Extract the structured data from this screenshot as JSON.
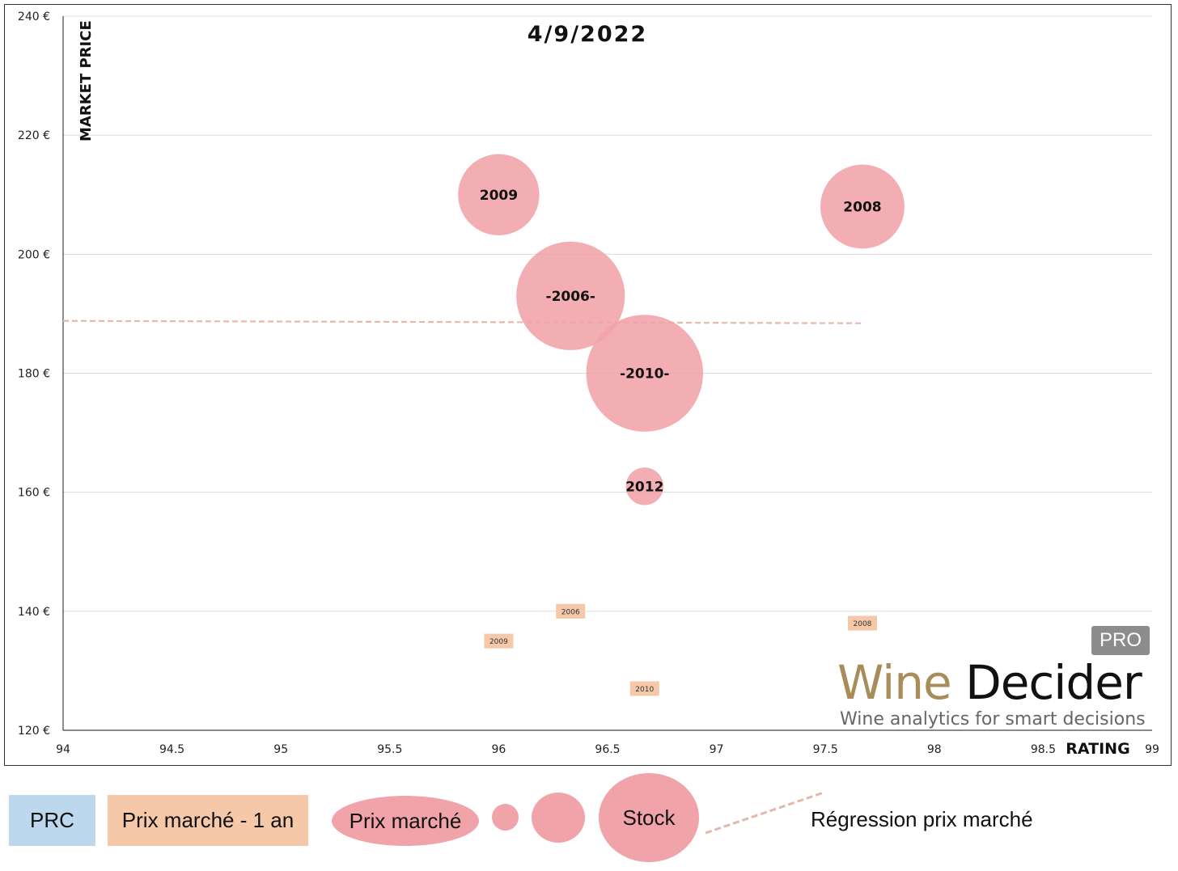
{
  "chart_data": {
    "type": "bubble",
    "title": "4/9/2022",
    "xlabel": "RATING",
    "ylabel": "MARKET PRICE",
    "xlim": [
      94,
      99
    ],
    "ylim": [
      120,
      240
    ],
    "x_ticks": [
      "94",
      "94.5",
      "95",
      "95.5",
      "96",
      "96.5",
      "97",
      "97.5",
      "98",
      "98.5",
      "99"
    ],
    "y_ticks": [
      "120 €",
      "140 €",
      "160 €",
      "180 €",
      "200 €",
      "220 €",
      "240 €"
    ],
    "grid": true,
    "series": [
      {
        "name": "Prix marché",
        "points": [
          {
            "label": "2009",
            "x": 96.0,
            "y": 210,
            "size": 2.8
          },
          {
            "label": "2008",
            "x": 97.67,
            "y": 208,
            "size": 3.0
          },
          {
            "label": "-2006-",
            "x": 96.33,
            "y": 193,
            "size": 5.0
          },
          {
            "label": "-2010-",
            "x": 96.67,
            "y": 180,
            "size": 5.8
          },
          {
            "label": "2012",
            "x": 96.67,
            "y": 161,
            "size": 0.6
          }
        ]
      },
      {
        "name": "Prix marché - 1 an",
        "points": [
          {
            "label": "2006",
            "x": 96.33,
            "y": 140
          },
          {
            "label": "2009",
            "x": 96.0,
            "y": 135
          },
          {
            "label": "2008",
            "x": 97.67,
            "y": 138
          },
          {
            "label": "2010",
            "x": 96.67,
            "y": 127
          }
        ]
      }
    ],
    "regression": {
      "name": "Régression prix marché",
      "x": [
        94,
        97.67
      ],
      "y": [
        188.8,
        188.4
      ]
    }
  },
  "legend": {
    "prc": "PRC",
    "prix_1an": "Prix marché - 1 an",
    "prix": "Prix marché",
    "stock": "Stock",
    "regression": "Régression prix marché"
  },
  "brand": {
    "badge": "PRO",
    "wine": "Wine",
    "decider": " Decider",
    "tagline": "Wine analytics for smart decisions"
  },
  "colors": {
    "bubble": "#f0a3a8",
    "prev_year": "#f4c8a8",
    "prc": "#bdd7ee",
    "regression": "#e8b8a8",
    "brand_gold": "#a88c5a"
  }
}
